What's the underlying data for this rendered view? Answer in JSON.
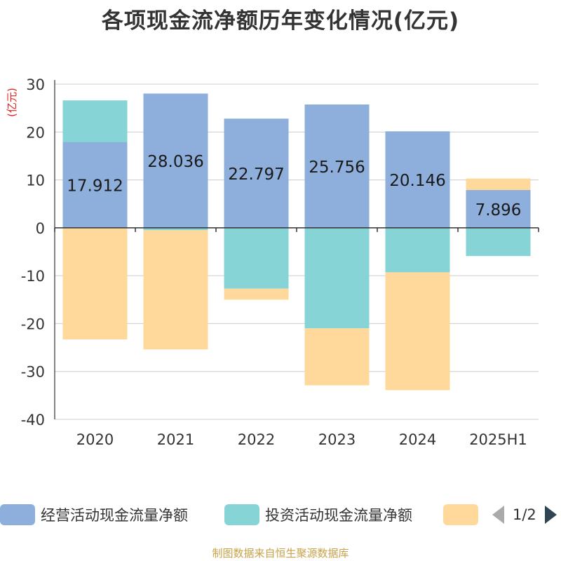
{
  "chart_data": {
    "type": "bar",
    "stacked": true,
    "title": "各项现金流净额历年变化情况(亿元)",
    "unit_label": "(亿元)",
    "categories": [
      "2020",
      "2021",
      "2022",
      "2023",
      "2024",
      "2025H1"
    ],
    "ylim": [
      -40,
      30
    ],
    "yticks": [
      30,
      20,
      10,
      0,
      -10,
      -20,
      -30,
      -40
    ],
    "grid": true,
    "legend_position": "bottom",
    "series": [
      {
        "name": "经营活动现金流量净额",
        "color": "#8eaedb",
        "values": [
          17.912,
          28.036,
          22.797,
          25.756,
          20.146,
          7.896
        ],
        "labels": [
          "17.912",
          "28.036",
          "22.797",
          "25.756",
          "20.146",
          "7.896"
        ]
      },
      {
        "name": "投资活动现金流量净额",
        "color": "#86d4d6",
        "values": [
          8.7,
          -0.5,
          -12.7,
          -21.0,
          -9.3,
          -5.9
        ]
      },
      {
        "name": "",
        "color": "#fed99b",
        "values": [
          -23.3,
          -24.9,
          -2.3,
          -11.9,
          -24.6,
          2.4
        ]
      }
    ]
  },
  "legend": {
    "page_text": "1/2"
  },
  "source": "制图数据来自恒生聚源数据库"
}
